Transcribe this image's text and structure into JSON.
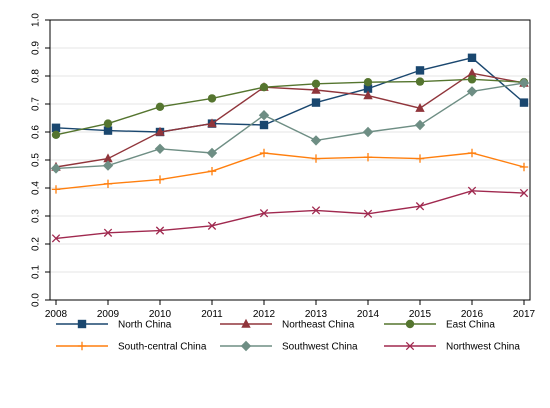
{
  "chart_data": {
    "type": "line",
    "title": "",
    "xlabel": "",
    "ylabel": "",
    "x": [
      2008,
      2009,
      2010,
      2011,
      2012,
      2013,
      2014,
      2015,
      2016,
      2017
    ],
    "xticks": [
      "2008",
      "2009",
      "2010",
      "2011",
      "2012",
      "2013",
      "2014",
      "2015",
      "2016",
      "2017"
    ],
    "ylim": [
      0,
      1
    ],
    "yticks": [
      "0.0",
      "0.1",
      "0.2",
      "0.3",
      "0.4",
      "0.5",
      "0.6",
      "0.7",
      "0.8",
      "0.9",
      "1.0"
    ],
    "grid": true,
    "legend_position": "bottom",
    "series": [
      {
        "name": "North China",
        "color": "#1a476f",
        "marker": "square",
        "values": [
          0.615,
          0.605,
          0.6,
          0.63,
          0.625,
          0.705,
          0.755,
          0.82,
          0.865,
          0.705
        ]
      },
      {
        "name": "Northeast China",
        "color": "#90353b",
        "marker": "triangle",
        "values": [
          0.475,
          0.505,
          0.6,
          0.63,
          0.76,
          0.75,
          0.73,
          0.685,
          0.81,
          0.775
        ]
      },
      {
        "name": "East China",
        "color": "#55752f",
        "marker": "circle",
        "values": [
          0.59,
          0.63,
          0.69,
          0.72,
          0.76,
          0.772,
          0.778,
          0.78,
          0.788,
          0.778
        ]
      },
      {
        "name": "South-central China",
        "color": "#ff7f0e",
        "marker": "plus",
        "values": [
          0.395,
          0.415,
          0.43,
          0.46,
          0.525,
          0.505,
          0.51,
          0.505,
          0.525,
          0.475
        ]
      },
      {
        "name": "Southwest China",
        "color": "#6e8e84",
        "marker": "diamond",
        "values": [
          0.47,
          0.48,
          0.54,
          0.525,
          0.66,
          0.57,
          0.6,
          0.625,
          0.745,
          0.775
        ]
      },
      {
        "name": "Northwest China",
        "color": "#a0294f",
        "marker": "x",
        "values": [
          0.22,
          0.24,
          0.248,
          0.265,
          0.31,
          0.32,
          0.308,
          0.335,
          0.39,
          0.382
        ]
      }
    ]
  }
}
